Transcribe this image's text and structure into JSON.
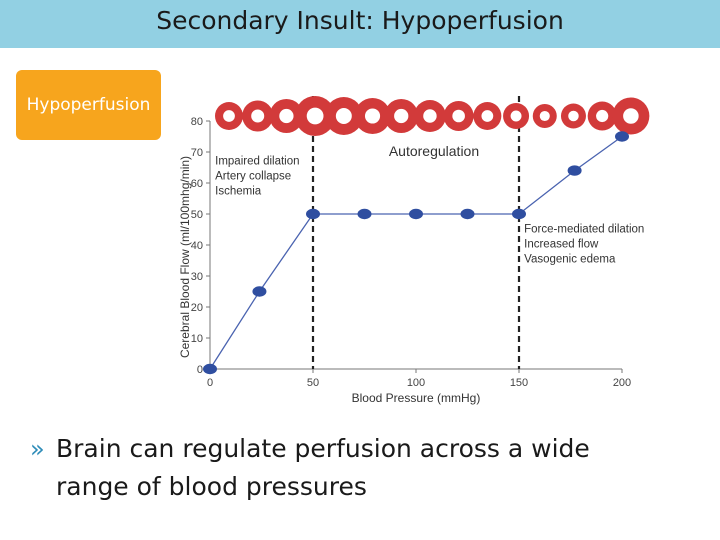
{
  "header": {
    "title": "Secondary Insult: Hypoperfusion"
  },
  "section": {
    "label": "Hypoperfusion"
  },
  "bullet": {
    "marker": "»",
    "text": "Brain can regulate perfusion across a wide range of blood pressures"
  },
  "colors": {
    "title_bar": "#92d0e3",
    "badge": "#f7a51d",
    "point": "#2f4ea0",
    "line": "#4a63b0",
    "vessel_ring": "#d23a3a"
  },
  "chart_data": {
    "type": "line",
    "xlabel": "Blood Pressure (mmHg)",
    "ylabel": "Cerebral Blood Flow (ml/100mhg/min)",
    "xlim": [
      0,
      200
    ],
    "ylim": [
      0,
      80
    ],
    "x_ticks": [
      0,
      50,
      100,
      150,
      200
    ],
    "y_ticks": [
      0,
      10,
      20,
      30,
      40,
      50,
      60,
      70,
      80
    ],
    "grid": false,
    "series": [
      {
        "x": [
          0,
          24,
          50,
          75,
          100,
          125,
          150,
          177,
          200
        ],
        "y": [
          0,
          25,
          50,
          50,
          50,
          50,
          50,
          64,
          75
        ]
      }
    ],
    "dividers": [
      50,
      150
    ],
    "annotations": {
      "center": "Autoregulation",
      "left": [
        "Impaired dilation",
        "Artery collapse",
        "Ischemia"
      ],
      "right": [
        "Force-mediated dilation",
        "Increased flow",
        "Vasogenic edema"
      ]
    },
    "vessel_diameters": [
      0.7,
      0.85,
      1.0,
      1.3,
      1.2,
      1.1,
      1.0,
      0.9,
      0.8,
      0.7,
      0.6,
      0.5,
      0.55,
      0.75,
      1.15
    ]
  }
}
